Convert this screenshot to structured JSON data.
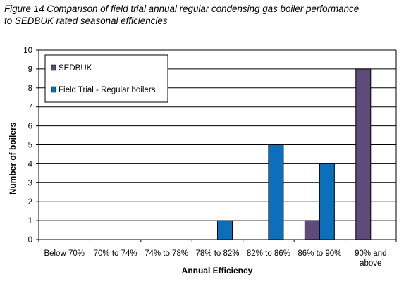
{
  "figure": {
    "title_line1": "Figure 14 Comparison of field trial annual regular condensing gas boiler performance",
    "title_line2": "to SEDBUK rated seasonal efficiencies"
  },
  "chart_data": {
    "type": "bar",
    "title": "Figure 14 Comparison of field trial annual regular condensing gas boiler performance to SEDBUK rated seasonal efficiencies",
    "xlabel": "Annual Efficiency",
    "ylabel": "Number of boilers",
    "ylim": [
      0,
      10
    ],
    "yticks": [
      0,
      1,
      2,
      3,
      4,
      5,
      6,
      7,
      8,
      9,
      10
    ],
    "grid": true,
    "legend_placement": "top-left",
    "categories": [
      "Below 70%",
      "70% to 74%",
      "74% to 78%",
      "78% to 82%",
      "82% to 86%",
      "86% to 90%",
      "90% and above"
    ],
    "category_lines": [
      [
        "Below 70%"
      ],
      [
        "70% to 74%"
      ],
      [
        "74% to 78%"
      ],
      [
        "78% to 82%"
      ],
      [
        "82% to 86%"
      ],
      [
        "86% to 90%"
      ],
      [
        "90% and",
        "above"
      ]
    ],
    "series": [
      {
        "name": "SEDBUK",
        "color": "#5e4b7a",
        "values": [
          0,
          0,
          0,
          0,
          0,
          1,
          9
        ]
      },
      {
        "name": "Field Trial - Regular boilers",
        "color": "#0c6fbc",
        "values": [
          0,
          0,
          0,
          1,
          5,
          4,
          0
        ]
      }
    ]
  }
}
